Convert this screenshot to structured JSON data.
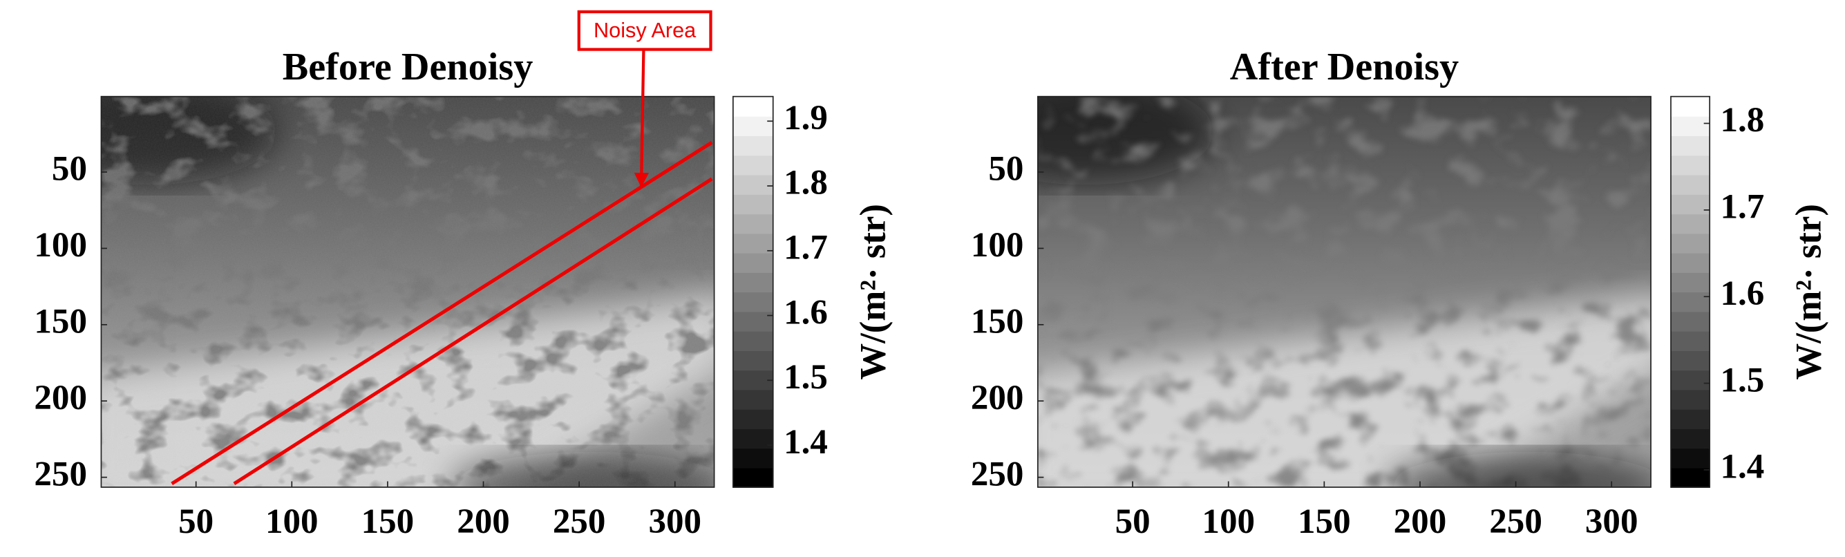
{
  "chart_data": [
    {
      "type": "image",
      "title": "Before Denoisy",
      "xlim": [
        0.5,
        320.5
      ],
      "ylim": [
        0.5,
        256.5
      ],
      "y_reversed": true,
      "xticks": [
        50,
        100,
        150,
        200,
        250,
        300
      ],
      "yticks": [
        50,
        100,
        150,
        200,
        250
      ],
      "colormap": "gray",
      "noise": true,
      "colorbar": {
        "clim": [
          1.335,
          1.938
        ],
        "ticks": [
          1.4,
          1.5,
          1.6,
          1.7,
          1.8,
          1.9
        ],
        "label": "W/(m²· str)"
      },
      "annotation": "Noisy Area"
    },
    {
      "type": "image",
      "title": "After Denoisy",
      "xlim": [
        0.5,
        320.5
      ],
      "ylim": [
        0.5,
        256.5
      ],
      "y_reversed": true,
      "xticks": [
        50,
        100,
        150,
        200,
        250,
        300
      ],
      "yticks": [
        50,
        100,
        150,
        200,
        250
      ],
      "colormap": "gray",
      "noise": false,
      "colorbar": {
        "clim": [
          1.38,
          1.831
        ],
        "ticks": [
          1.4,
          1.5,
          1.6,
          1.7,
          1.8
        ],
        "label": "W/(m²· str)"
      }
    }
  ]
}
